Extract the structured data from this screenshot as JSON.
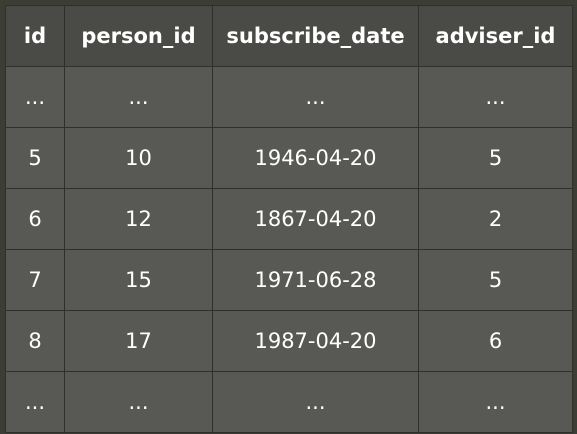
{
  "table": {
    "headers": [
      "id",
      "person_id",
      "subscribe_date",
      "adviser_id"
    ],
    "rows": [
      [
        "...",
        "...",
        "...",
        "..."
      ],
      [
        "5",
        "10",
        "1946-04-20",
        "5"
      ],
      [
        "6",
        "12",
        "1867-04-20",
        "2"
      ],
      [
        "7",
        "15",
        "1971-06-28",
        "5"
      ],
      [
        "8",
        "17",
        "1987-04-20",
        "6"
      ],
      [
        "...",
        "...",
        "...",
        "..."
      ]
    ]
  }
}
